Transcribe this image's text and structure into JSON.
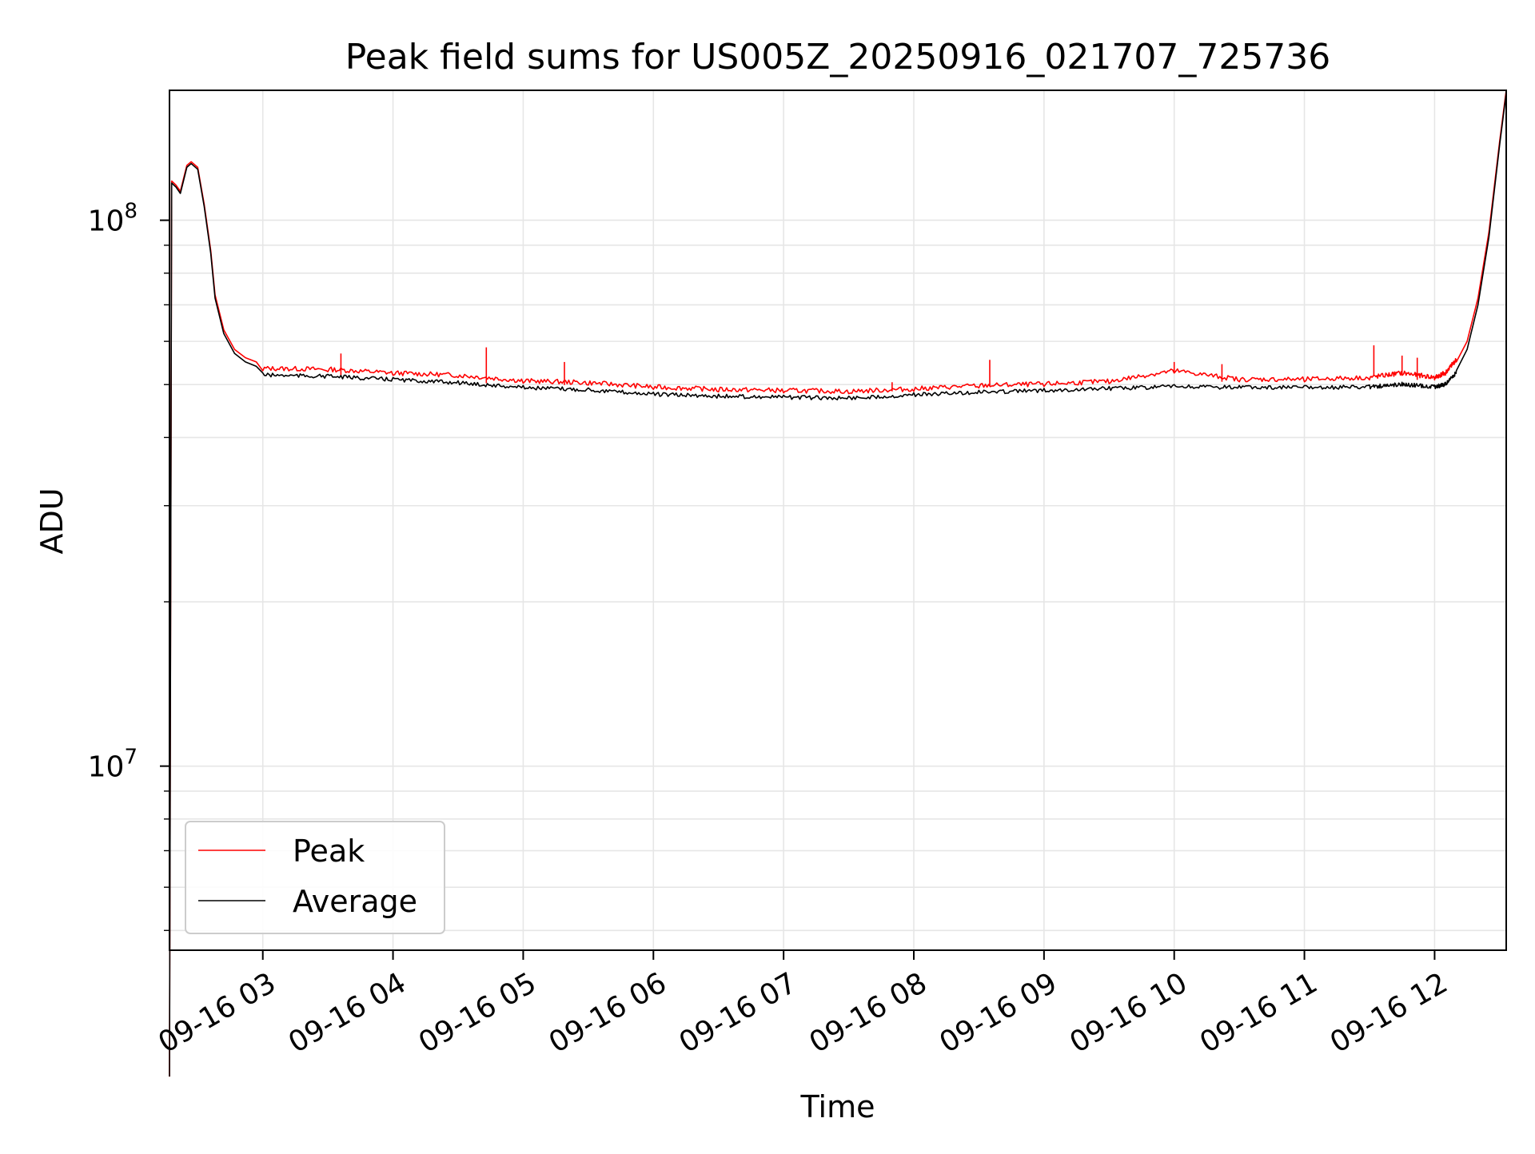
{
  "chart_data": {
    "type": "line",
    "title": "Peak field sums for US005Z_20250916_021707_725736",
    "xlabel": "Time",
    "ylabel": "ADU",
    "yscale": "log",
    "ylim": [
      4600000,
      173000000
    ],
    "xlim": [
      "2025-09-16 02:17",
      "2025-09-16 12:33"
    ],
    "grid": true,
    "legend": "lower-left",
    "x_ticks": [
      "09-16 03",
      "09-16 04",
      "09-16 05",
      "09-16 06",
      "09-16 07",
      "09-16 08",
      "09-16 09",
      "09-16 10",
      "09-16 11",
      "09-16 12"
    ],
    "y_ticks": [
      {
        "label": "10",
        "exp": "7",
        "value": 10000000
      },
      {
        "label": "10",
        "exp": "8",
        "value": 100000000
      }
    ],
    "series": [
      {
        "name": "Peak",
        "color": "#ff0000",
        "x": [
          "2025-09-16 02:17",
          "2025-09-16 02:18",
          "2025-09-16 02:20",
          "2025-09-16 02:22",
          "2025-09-16 02:25",
          "2025-09-16 02:27",
          "2025-09-16 02:30",
          "2025-09-16 02:33",
          "2025-09-16 02:36",
          "2025-09-16 02:38",
          "2025-09-16 02:42",
          "2025-09-16 02:47",
          "2025-09-16 02:52",
          "2025-09-16 02:57",
          "2025-09-16 03:00",
          "2025-09-16 03:30",
          "2025-09-16 04:00",
          "2025-09-16 04:30",
          "2025-09-16 05:00",
          "2025-09-16 05:30",
          "2025-09-16 06:00",
          "2025-09-16 06:30",
          "2025-09-16 07:00",
          "2025-09-16 07:30",
          "2025-09-16 08:00",
          "2025-09-16 08:30",
          "2025-09-16 09:00",
          "2025-09-16 09:30",
          "2025-09-16 10:00",
          "2025-09-16 10:30",
          "2025-09-16 11:00",
          "2025-09-16 11:30",
          "2025-09-16 11:45",
          "2025-09-16 12:00",
          "2025-09-16 12:05",
          "2025-09-16 12:10",
          "2025-09-16 12:15",
          "2025-09-16 12:20",
          "2025-09-16 12:25",
          "2025-09-16 12:30",
          "2025-09-16 12:33"
        ],
        "y": [
          2700000,
          118000000,
          116000000,
          113000000,
          126000000,
          128000000,
          125000000,
          107000000,
          88000000,
          73000000,
          63000000,
          58000000,
          56000000,
          55000000,
          53000000,
          52800000,
          52000000,
          51500000,
          50300000,
          49900000,
          49000000,
          48500000,
          48300000,
          48100000,
          48600000,
          49300000,
          49600000,
          50200000,
          52500000,
          50600000,
          50600000,
          51000000,
          52000000,
          51000000,
          52000000,
          55000000,
          60000000,
          72000000,
          95000000,
          140000000,
          173000000
        ],
        "spikes": [
          {
            "x": "2025-09-16 03:36",
            "y": 57000000
          },
          {
            "x": "2025-09-16 04:43",
            "y": 58500000
          },
          {
            "x": "2025-09-16 05:19",
            "y": 55000000
          },
          {
            "x": "2025-09-16 07:50",
            "y": 50500000
          },
          {
            "x": "2025-09-16 08:35",
            "y": 55500000
          },
          {
            "x": "2025-09-16 10:00",
            "y": 55000000
          },
          {
            "x": "2025-09-16 10:22",
            "y": 54500000
          },
          {
            "x": "2025-09-16 11:32",
            "y": 59000000
          },
          {
            "x": "2025-09-16 11:45",
            "y": 56500000
          },
          {
            "x": "2025-09-16 11:52",
            "y": 56000000
          }
        ]
      },
      {
        "name": "Average",
        "color": "#000000",
        "x": [
          "2025-09-16 02:17",
          "2025-09-16 02:18",
          "2025-09-16 02:20",
          "2025-09-16 02:22",
          "2025-09-16 02:25",
          "2025-09-16 02:27",
          "2025-09-16 02:30",
          "2025-09-16 02:33",
          "2025-09-16 02:36",
          "2025-09-16 02:38",
          "2025-09-16 02:42",
          "2025-09-16 02:47",
          "2025-09-16 02:52",
          "2025-09-16 02:57",
          "2025-09-16 03:00",
          "2025-09-16 03:30",
          "2025-09-16 04:00",
          "2025-09-16 04:30",
          "2025-09-16 05:00",
          "2025-09-16 05:30",
          "2025-09-16 06:00",
          "2025-09-16 06:30",
          "2025-09-16 07:00",
          "2025-09-16 07:30",
          "2025-09-16 08:00",
          "2025-09-16 08:30",
          "2025-09-16 09:00",
          "2025-09-16 09:30",
          "2025-09-16 10:00",
          "2025-09-16 10:30",
          "2025-09-16 11:00",
          "2025-09-16 11:30",
          "2025-09-16 11:45",
          "2025-09-16 12:00",
          "2025-09-16 12:05",
          "2025-09-16 12:10",
          "2025-09-16 12:15",
          "2025-09-16 12:20",
          "2025-09-16 12:25",
          "2025-09-16 12:30",
          "2025-09-16 12:33"
        ],
        "y": [
          2700000,
          117000000,
          115000000,
          112000000,
          125000000,
          127000000,
          124000000,
          106000000,
          87000000,
          72000000,
          62000000,
          57000000,
          55000000,
          54000000,
          52500000,
          52200000,
          51500000,
          50800000,
          49800000,
          49300000,
          48400000,
          48000000,
          47800000,
          47600000,
          48300000,
          48800000,
          49200000,
          49600000,
          50000000,
          49800000,
          49800000,
          49900000,
          50500000,
          49900000,
          50500000,
          53000000,
          58000000,
          70000000,
          93000000,
          138000000,
          171000000
        ]
      }
    ]
  }
}
